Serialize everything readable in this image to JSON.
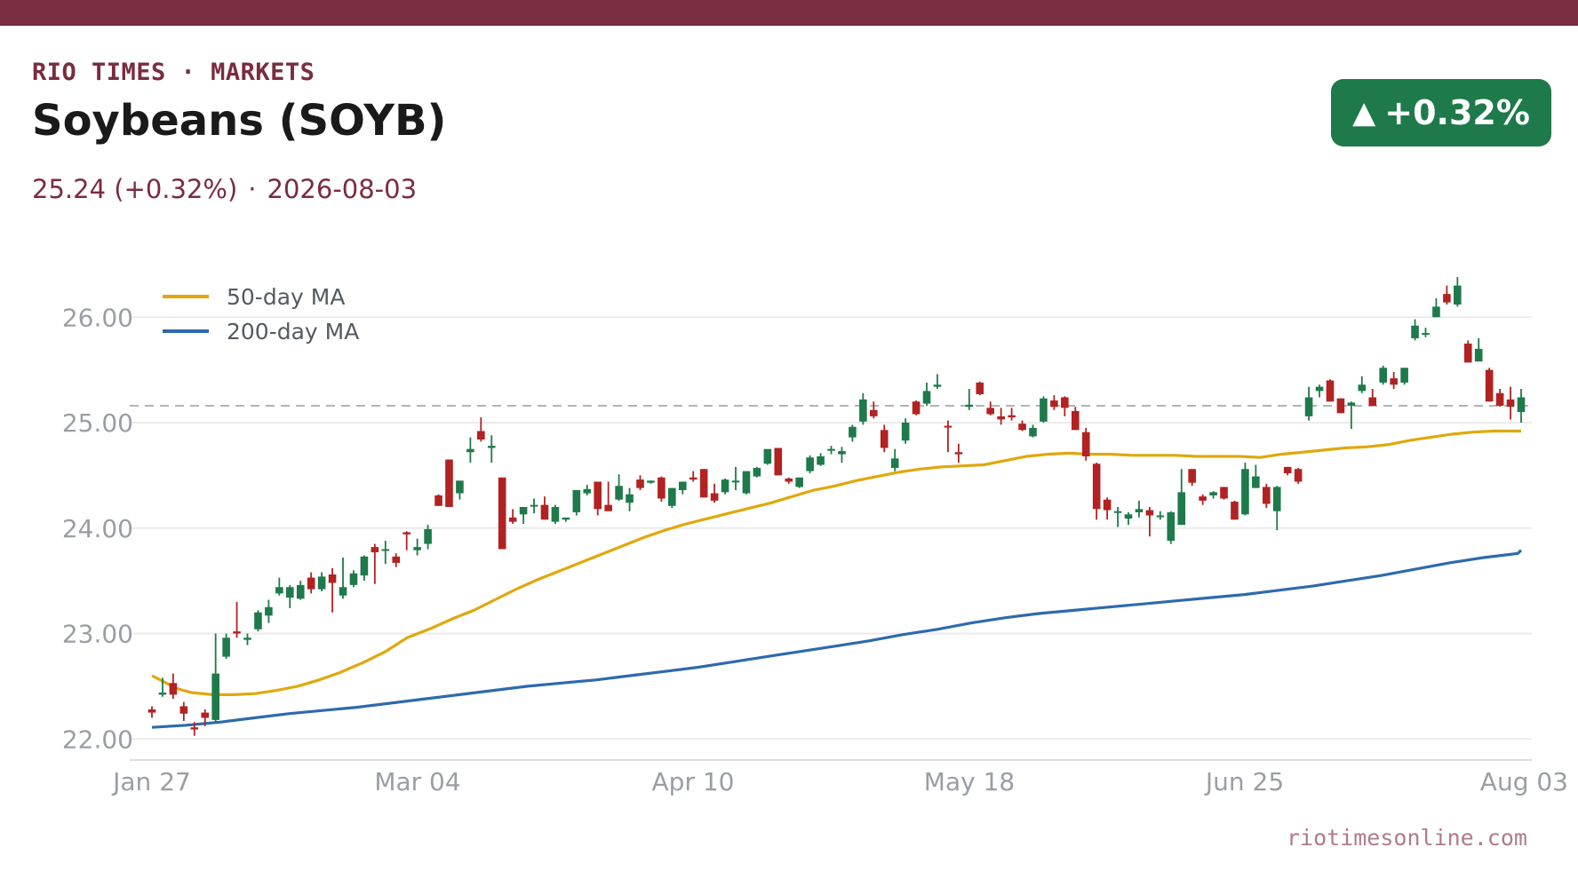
{
  "header": {
    "brand": "RIO TIMES · MARKETS",
    "title": "Soybeans (SOYB)",
    "price_change": "25.24 (+0.32%)",
    "separator": "·",
    "date": "2026-08-03"
  },
  "badge": {
    "arrow": "▲",
    "text": "+0.32%",
    "icon": "up-arrow-icon"
  },
  "footer": {
    "source": "riotimesonline.com"
  },
  "colors": {
    "brand": "#7a2c40",
    "badge": "#1e7a4a",
    "up": "#1e7a4a",
    "down": "#b22222",
    "ma50": "#dfa80c",
    "ma200": "#2e6aad",
    "reference": "#b3b3b3",
    "grid": "#ebebeb",
    "tick": "#9a9ea4"
  },
  "chart_data": {
    "type": "candlestick",
    "title": "",
    "xlabel": "",
    "ylabel": "",
    "ylim": [
      21.8,
      26.6
    ],
    "yticks": [
      22.0,
      23.0,
      24.0,
      25.0,
      26.0
    ],
    "ytick_labels": [
      "22.00",
      "23.00",
      "24.00",
      "25.00",
      "26.00"
    ],
    "xtick_labels": [
      "Jan 27",
      "Mar 04",
      "Apr 10",
      "May 18",
      "Jun 25",
      "Aug 03"
    ],
    "grid": true,
    "legend_position": "top-left",
    "reference_line": 25.16,
    "series": [
      {
        "name": "50-day MA",
        "kind": "line",
        "color_key": "ma50"
      },
      {
        "name": "200-day MA",
        "kind": "line",
        "color_key": "ma200"
      }
    ],
    "candles_ohlc": [
      [
        22.28,
        22.31,
        22.2,
        22.25
      ],
      [
        22.42,
        22.58,
        22.4,
        22.44
      ],
      [
        22.53,
        22.62,
        22.38,
        22.42
      ],
      [
        22.31,
        22.35,
        22.17,
        22.24
      ],
      [
        22.11,
        22.16,
        22.03,
        22.09
      ],
      [
        22.25,
        22.28,
        22.12,
        22.2
      ],
      [
        22.18,
        23.0,
        22.15,
        22.62
      ],
      [
        22.78,
        23.0,
        22.76,
        22.96
      ],
      [
        23.02,
        23.3,
        22.96,
        23.0
      ],
      [
        22.94,
        23.0,
        22.89,
        22.96
      ],
      [
        23.04,
        23.22,
        23.02,
        23.2
      ],
      [
        23.17,
        23.32,
        23.1,
        23.25
      ],
      [
        23.38,
        23.53,
        23.36,
        23.44
      ],
      [
        23.34,
        23.46,
        23.24,
        23.44
      ],
      [
        23.33,
        23.5,
        23.32,
        23.46
      ],
      [
        23.53,
        23.58,
        23.38,
        23.42
      ],
      [
        23.42,
        23.58,
        23.4,
        23.54
      ],
      [
        23.56,
        23.62,
        23.2,
        23.48
      ],
      [
        23.36,
        23.72,
        23.33,
        23.44
      ],
      [
        23.46,
        23.6,
        23.44,
        23.57
      ],
      [
        23.55,
        23.74,
        23.5,
        23.73
      ],
      [
        23.82,
        23.85,
        23.47,
        23.77
      ],
      [
        23.8,
        23.88,
        23.66,
        23.8
      ],
      [
        23.73,
        23.76,
        23.63,
        23.67
      ],
      [
        23.96,
        23.97,
        23.79,
        23.94
      ],
      [
        23.79,
        23.9,
        23.74,
        23.82
      ],
      [
        23.85,
        24.03,
        23.8,
        23.99
      ],
      [
        24.31,
        24.32,
        24.21,
        24.21
      ],
      [
        24.65,
        24.65,
        24.2,
        24.2
      ],
      [
        24.33,
        24.4,
        24.27,
        24.45
      ],
      [
        24.72,
        24.86,
        24.62,
        24.75
      ],
      [
        24.92,
        25.05,
        24.82,
        24.84
      ],
      [
        24.76,
        24.88,
        24.62,
        24.78
      ],
      [
        24.48,
        24.48,
        23.8,
        23.8
      ],
      [
        24.1,
        24.18,
        24.04,
        24.06
      ],
      [
        24.13,
        24.2,
        24.04,
        24.2
      ],
      [
        24.22,
        24.28,
        24.14,
        24.22
      ],
      [
        24.22,
        24.3,
        24.08,
        24.08
      ],
      [
        24.06,
        24.22,
        24.04,
        24.2
      ],
      [
        24.08,
        24.1,
        24.06,
        24.1
      ],
      [
        24.15,
        24.36,
        24.12,
        24.36
      ],
      [
        24.33,
        24.41,
        24.31,
        24.37
      ],
      [
        24.44,
        24.44,
        24.12,
        24.18
      ],
      [
        24.22,
        24.44,
        24.18,
        24.16
      ],
      [
        24.27,
        24.51,
        24.26,
        24.4
      ],
      [
        24.24,
        24.38,
        24.16,
        24.32
      ],
      [
        24.46,
        24.5,
        24.36,
        24.38
      ],
      [
        24.43,
        24.45,
        24.42,
        24.45
      ],
      [
        24.48,
        24.49,
        24.25,
        24.28
      ],
      [
        24.21,
        24.38,
        24.19,
        24.38
      ],
      [
        24.36,
        24.44,
        24.32,
        24.44
      ],
      [
        24.48,
        24.54,
        24.44,
        24.46
      ],
      [
        24.56,
        24.56,
        24.29,
        24.29
      ],
      [
        24.33,
        24.42,
        24.24,
        24.26
      ],
      [
        24.34,
        24.47,
        24.32,
        24.46
      ],
      [
        24.45,
        24.58,
        24.36,
        24.45
      ],
      [
        24.33,
        24.52,
        24.32,
        24.54
      ],
      [
        24.49,
        24.58,
        24.48,
        24.57
      ],
      [
        24.61,
        24.74,
        24.6,
        24.75
      ],
      [
        24.76,
        24.76,
        24.5,
        24.5
      ],
      [
        24.47,
        24.48,
        24.42,
        24.44
      ],
      [
        24.39,
        24.48,
        24.38,
        24.48
      ],
      [
        24.54,
        24.69,
        24.52,
        24.67
      ],
      [
        24.6,
        24.71,
        24.59,
        24.68
      ],
      [
        24.75,
        24.78,
        24.7,
        24.75
      ],
      [
        24.7,
        24.77,
        24.62,
        24.73
      ],
      [
        24.86,
        24.98,
        24.82,
        24.96
      ],
      [
        25.01,
        25.28,
        24.98,
        25.22
      ],
      [
        25.12,
        25.2,
        25.04,
        25.06
      ],
      [
        24.93,
        24.98,
        24.72,
        24.76
      ],
      [
        24.57,
        24.75,
        24.54,
        24.66
      ],
      [
        24.83,
        25.04,
        24.8,
        25.0
      ],
      [
        25.2,
        25.21,
        25.07,
        25.08
      ],
      [
        25.18,
        25.38,
        25.16,
        25.3
      ],
      [
        25.34,
        25.46,
        25.32,
        25.36
      ],
      [
        24.97,
        25.02,
        24.72,
        24.96
      ],
      [
        24.72,
        24.8,
        24.62,
        24.7
      ],
      [
        25.15,
        25.32,
        25.12,
        25.17
      ],
      [
        25.38,
        25.39,
        25.26,
        25.27
      ],
      [
        25.14,
        25.2,
        25.07,
        25.08
      ],
      [
        25.06,
        25.14,
        24.98,
        25.03
      ],
      [
        25.07,
        25.14,
        25.02,
        25.05
      ],
      [
        24.99,
        25.02,
        24.92,
        24.93
      ],
      [
        24.87,
        24.98,
        24.86,
        24.95
      ],
      [
        25.01,
        25.25,
        25.0,
        25.23
      ],
      [
        25.21,
        25.26,
        25.12,
        25.15
      ],
      [
        25.24,
        25.25,
        25.06,
        25.14
      ],
      [
        25.11,
        25.15,
        24.95,
        24.93
      ],
      [
        24.91,
        24.95,
        24.64,
        24.68
      ],
      [
        24.61,
        24.62,
        24.08,
        24.18
      ],
      [
        24.27,
        24.29,
        24.08,
        24.17
      ],
      [
        24.15,
        24.2,
        24.01,
        24.16
      ],
      [
        24.09,
        24.15,
        24.03,
        24.13
      ],
      [
        24.15,
        24.26,
        24.1,
        24.18
      ],
      [
        24.17,
        24.2,
        23.92,
        24.12
      ],
      [
        24.11,
        24.16,
        24.08,
        24.12
      ],
      [
        23.88,
        24.16,
        23.85,
        24.15
      ],
      [
        24.03,
        24.56,
        24.03,
        24.34
      ],
      [
        24.56,
        24.56,
        24.4,
        24.43
      ],
      [
        24.3,
        24.32,
        24.22,
        24.26
      ],
      [
        24.31,
        24.35,
        24.28,
        24.34
      ],
      [
        24.39,
        24.39,
        24.27,
        24.28
      ],
      [
        24.25,
        24.26,
        24.08,
        24.08
      ],
      [
        24.13,
        24.62,
        24.12,
        24.56
      ],
      [
        24.38,
        24.6,
        24.38,
        24.49
      ],
      [
        24.39,
        24.42,
        24.19,
        24.23
      ],
      [
        24.16,
        24.4,
        23.98,
        24.39
      ],
      [
        24.58,
        24.58,
        24.5,
        24.52
      ],
      [
        24.56,
        24.57,
        24.42,
        24.44
      ],
      [
        25.06,
        25.34,
        25.02,
        25.24
      ],
      [
        25.3,
        25.36,
        25.24,
        25.34
      ],
      [
        25.4,
        25.41,
        25.2,
        25.2
      ],
      [
        25.23,
        25.23,
        25.09,
        25.09
      ],
      [
        25.16,
        25.2,
        24.94,
        25.19
      ],
      [
        25.3,
        25.44,
        25.28,
        25.36
      ],
      [
        25.24,
        25.32,
        25.2,
        25.16
      ],
      [
        25.38,
        25.54,
        25.36,
        25.52
      ],
      [
        25.42,
        25.48,
        25.32,
        25.36
      ],
      [
        25.38,
        25.52,
        25.36,
        25.52
      ],
      [
        25.8,
        25.98,
        25.78,
        25.92
      ],
      [
        25.84,
        25.9,
        25.81,
        25.85
      ],
      [
        26.0,
        26.18,
        26.0,
        26.1
      ],
      [
        26.22,
        26.3,
        26.12,
        26.14
      ],
      [
        26.12,
        26.38,
        26.1,
        26.3
      ],
      [
        25.75,
        25.78,
        25.57,
        25.57
      ],
      [
        25.58,
        25.8,
        25.58,
        25.7
      ],
      [
        25.5,
        25.52,
        25.2,
        25.2
      ],
      [
        25.28,
        25.32,
        25.15,
        25.16
      ],
      [
        25.22,
        25.34,
        25.03,
        25.15
      ],
      [
        25.1,
        25.32,
        25.0,
        25.24
      ]
    ],
    "ma50_points": [
      [
        0,
        22.6
      ],
      [
        4,
        22.54
      ],
      [
        8,
        22.48
      ],
      [
        13,
        22.44
      ],
      [
        20,
        22.42
      ],
      [
        27,
        22.42
      ],
      [
        34,
        22.43
      ],
      [
        41,
        22.46
      ],
      [
        48,
        22.5
      ],
      [
        55,
        22.56
      ],
      [
        62,
        22.63
      ],
      [
        70,
        22.73
      ],
      [
        77,
        22.83
      ],
      [
        84,
        22.96
      ],
      [
        92,
        23.05
      ],
      [
        99,
        23.14
      ],
      [
        106,
        23.22
      ],
      [
        113,
        23.32
      ],
      [
        120,
        23.42
      ],
      [
        127,
        23.51
      ],
      [
        134,
        23.59
      ],
      [
        141,
        23.67
      ],
      [
        148,
        23.75
      ],
      [
        155,
        23.83
      ],
      [
        162,
        23.91
      ],
      [
        169,
        23.98
      ],
      [
        176,
        24.04
      ],
      [
        183,
        24.09
      ],
      [
        190,
        24.14
      ],
      [
        197,
        24.19
      ],
      [
        204,
        24.24
      ],
      [
        211,
        24.3
      ],
      [
        218,
        24.36
      ],
      [
        225,
        24.4
      ],
      [
        232,
        24.45
      ],
      [
        239,
        24.49
      ],
      [
        246,
        24.53
      ],
      [
        253,
        24.56
      ],
      [
        260,
        24.58
      ],
      [
        267,
        24.59
      ],
      [
        274,
        24.6
      ],
      [
        281,
        24.64
      ],
      [
        288,
        24.68
      ],
      [
        295,
        24.7
      ],
      [
        302,
        24.71
      ],
      [
        309,
        24.7
      ],
      [
        316,
        24.7
      ],
      [
        323,
        24.69
      ],
      [
        330,
        24.69
      ],
      [
        337,
        24.69
      ],
      [
        344,
        24.68
      ],
      [
        351,
        24.68
      ],
      [
        358,
        24.68
      ],
      [
        365,
        24.67
      ],
      [
        372,
        24.7
      ],
      [
        379,
        24.72
      ],
      [
        386,
        24.74
      ],
      [
        393,
        24.76
      ],
      [
        400,
        24.77
      ],
      [
        407,
        24.79
      ],
      [
        414,
        24.83
      ],
      [
        421,
        24.86
      ],
      [
        428,
        24.89
      ],
      [
        435,
        24.91
      ],
      [
        442,
        24.92
      ],
      [
        449,
        24.92
      ],
      [
        451,
        24.92
      ]
    ],
    "ma200_points": [
      [
        0,
        22.11
      ],
      [
        20,
        22.13
      ],
      [
        40,
        22.16
      ],
      [
        60,
        22.2
      ],
      [
        80,
        22.24
      ],
      [
        100,
        22.27
      ],
      [
        120,
        22.3
      ],
      [
        140,
        22.34
      ],
      [
        160,
        22.38
      ],
      [
        180,
        22.42
      ],
      [
        200,
        22.46
      ],
      [
        220,
        22.5
      ],
      [
        240,
        22.53
      ],
      [
        260,
        22.56
      ],
      [
        280,
        22.6
      ],
      [
        300,
        22.64
      ],
      [
        320,
        22.68
      ],
      [
        340,
        22.73
      ],
      [
        360,
        22.78
      ],
      [
        380,
        22.83
      ],
      [
        400,
        22.88
      ],
      [
        420,
        22.93
      ],
      [
        440,
        22.99
      ],
      [
        460,
        23.04
      ],
      [
        480,
        23.1
      ],
      [
        500,
        23.15
      ],
      [
        520,
        23.19
      ],
      [
        540,
        23.22
      ],
      [
        560,
        23.25
      ],
      [
        580,
        23.28
      ],
      [
        600,
        23.31
      ],
      [
        620,
        23.34
      ],
      [
        640,
        23.37
      ],
      [
        660,
        23.41
      ],
      [
        680,
        23.45
      ],
      [
        700,
        23.5
      ],
      [
        720,
        23.55
      ],
      [
        740,
        23.61
      ],
      [
        760,
        23.67
      ],
      [
        780,
        23.72
      ],
      [
        800,
        23.76
      ],
      [
        802,
        23.79
      ]
    ],
    "ma200_x_domain": [
      0,
      802
    ],
    "ma50_x_domain": [
      0,
      451
    ]
  }
}
